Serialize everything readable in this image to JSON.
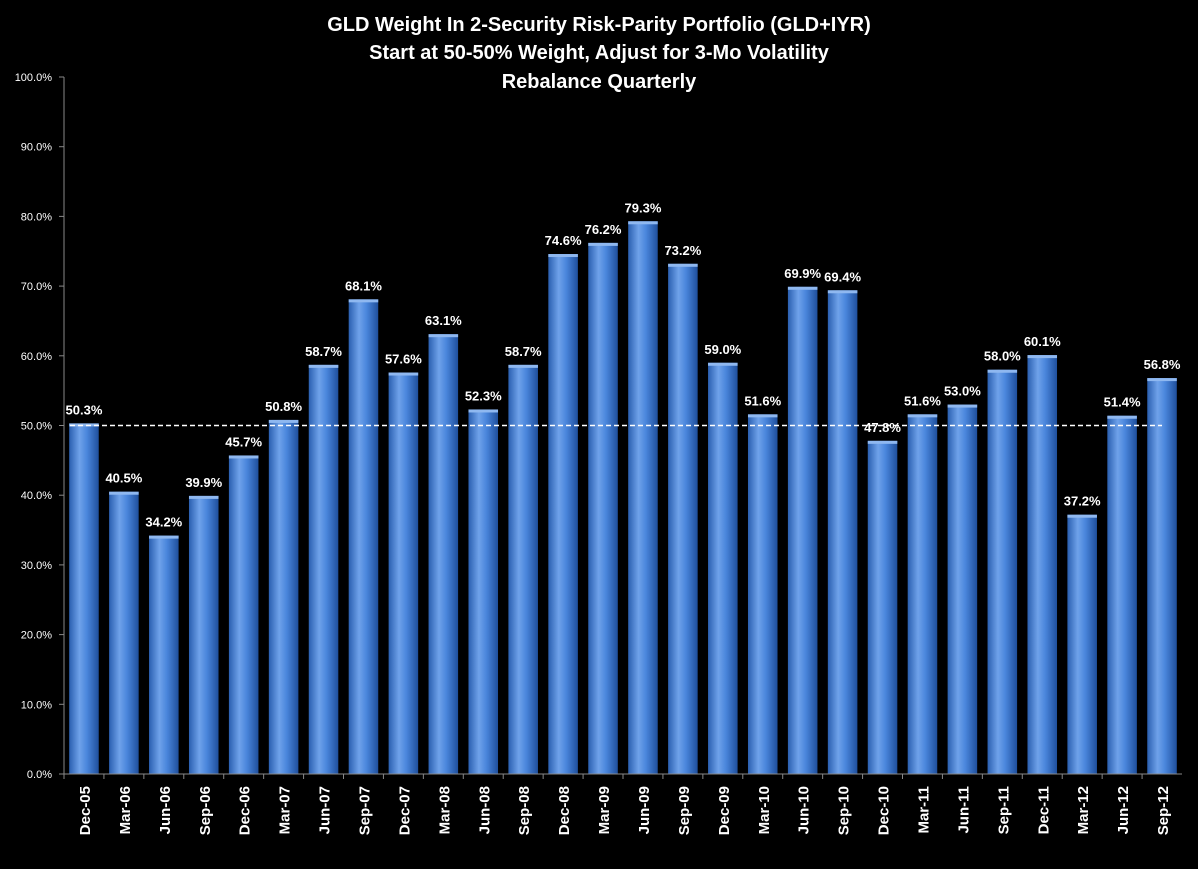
{
  "chart_data": {
    "type": "bar",
    "title": [
      "GLD Weight In 2-Security Risk-Parity Portfolio (GLD+IYR)",
      "Start at 50-50% Weight, Adjust for 3-Mo Volatility",
      "Rebalance Quarterly"
    ],
    "xlabel": "",
    "ylabel": "",
    "ylim": [
      0,
      100
    ],
    "y_ticks": [
      "0.0%",
      "10.0%",
      "20.0%",
      "30.0%",
      "40.0%",
      "50.0%",
      "60.0%",
      "70.0%",
      "80.0%",
      "90.0%",
      "100.0%"
    ],
    "categories": [
      "Dec-05",
      "Mar-06",
      "Jun-06",
      "Sep-06",
      "Dec-06",
      "Mar-07",
      "Jun-07",
      "Sep-07",
      "Dec-07",
      "Mar-08",
      "Jun-08",
      "Sep-08",
      "Dec-08",
      "Mar-09",
      "Jun-09",
      "Sep-09",
      "Dec-09",
      "Mar-10",
      "Jun-10",
      "Sep-10",
      "Dec-10",
      "Mar-11",
      "Jun-11",
      "Sep-11",
      "Dec-11",
      "Mar-12",
      "Jun-12",
      "Sep-12"
    ],
    "values": [
      50.3,
      40.5,
      34.2,
      39.9,
      45.7,
      50.8,
      58.7,
      68.1,
      57.6,
      63.1,
      52.3,
      58.7,
      74.6,
      76.2,
      79.3,
      73.2,
      59.0,
      51.6,
      69.9,
      69.4,
      47.8,
      51.6,
      53.0,
      58.0,
      60.1,
      37.2,
      51.4,
      56.8
    ],
    "data_labels": [
      "50.3%",
      "40.5%",
      "34.2%",
      "39.9%",
      "45.7%",
      "50.8%",
      "58.7%",
      "68.1%",
      "57.6%",
      "63.1%",
      "52.3%",
      "58.7%",
      "74.6%",
      "76.2%",
      "79.3%",
      "73.2%",
      "59.0%",
      "51.6%",
      "69.9%",
      "69.4%",
      "47.8%",
      "51.6%",
      "53.0%",
      "58.0%",
      "60.1%",
      "37.2%",
      "51.4%",
      "56.8%"
    ],
    "reference_line": 50,
    "grid": false,
    "colors": {
      "bar": "#4a86dc",
      "bar_light": "#8fb8f0",
      "bar_dark": "#2a5fb0",
      "background": "#000000",
      "text": "#ffffff",
      "reference_line": "#ffffff"
    }
  }
}
